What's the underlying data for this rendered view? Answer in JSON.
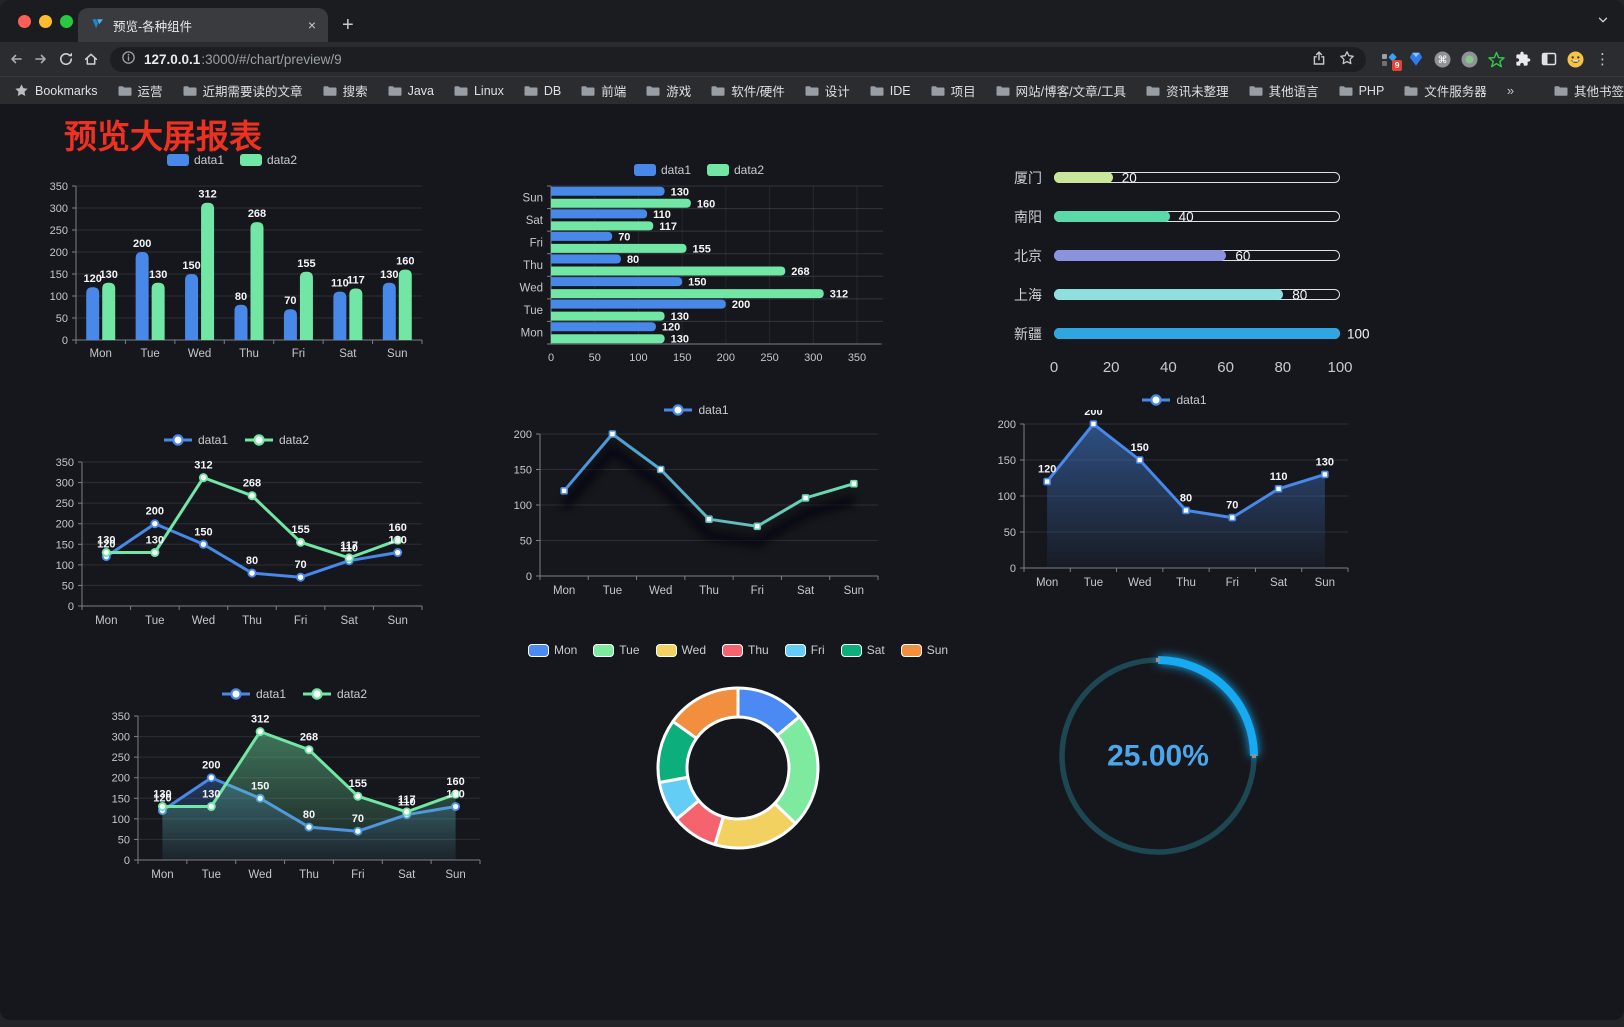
{
  "browser": {
    "window_controls": [
      "#ff5f57",
      "#febc2e",
      "#28c840"
    ],
    "tab": {
      "title": "预览-各种组件"
    },
    "icons": {
      "close": "×",
      "new_tab": "+",
      "menu": "⋮"
    },
    "url": {
      "host": "127.0.0.1",
      "rest": ":3000/#/chart/preview/9"
    },
    "extensions_badge": "9",
    "bookmarks": {
      "root": "Bookmarks",
      "folders": [
        "运营",
        "近期需要读的文章",
        "搜索",
        "Java",
        "Linux",
        "DB",
        "前端",
        "游戏",
        "软件/硬件",
        "设计",
        "IDE",
        "项目",
        "网站/博客/文章/工具",
        "资讯未整理",
        "其他语言",
        "PHP",
        "文件服务器"
      ],
      "overflow": "»",
      "other": "其他书签"
    }
  },
  "page": {
    "title": "预览大屏报表",
    "title_color": "#ee3120"
  },
  "chart_data": [
    {
      "id": "grouped-bar",
      "type": "bar",
      "orientation": "vertical",
      "title": "",
      "legend_position": "top",
      "grid": true,
      "value_labels": true,
      "categories": [
        "Mon",
        "Tue",
        "Wed",
        "Thu",
        "Fri",
        "Sat",
        "Sun"
      ],
      "series": [
        {
          "name": "data1",
          "color": "#4788e8",
          "values": [
            120,
            200,
            150,
            80,
            70,
            110,
            130
          ]
        },
        {
          "name": "data2",
          "color": "#71e6a5",
          "values": [
            130,
            130,
            312,
            268,
            155,
            117,
            160
          ]
        }
      ],
      "ylim": [
        0,
        350
      ],
      "ytick": 50
    },
    {
      "id": "horizontal-bar",
      "type": "bar",
      "orientation": "horizontal",
      "legend_position": "top",
      "grid": true,
      "value_labels": true,
      "categories": [
        "Sun",
        "Sat",
        "Fri",
        "Thu",
        "Wed",
        "Tue",
        "Mon"
      ],
      "series": [
        {
          "name": "data1",
          "color": "#4788e8",
          "values": [
            130,
            110,
            70,
            80,
            150,
            200,
            120
          ]
        },
        {
          "name": "data2",
          "color": "#71e6a5",
          "values": [
            160,
            117,
            155,
            268,
            312,
            130,
            130
          ]
        }
      ],
      "xlim": [
        0,
        350
      ],
      "xtick": 50
    },
    {
      "id": "city-progress",
      "type": "progress-bars",
      "max": 100,
      "items": [
        {
          "label": "厦门",
          "value": 20,
          "color": "#c9e79b"
        },
        {
          "label": "南阳",
          "value": 40,
          "color": "#5bd9a8"
        },
        {
          "label": "北京",
          "value": 60,
          "color": "#8b93de"
        },
        {
          "label": "上海",
          "value": 80,
          "color": "#8fdfdf"
        },
        {
          "label": "新疆",
          "value": 100,
          "color": "#30a6e0"
        }
      ],
      "axis_ticks": [
        0,
        20,
        40,
        60,
        80,
        100
      ]
    },
    {
      "id": "line-two",
      "type": "line",
      "legend_position": "top",
      "grid": true,
      "value_labels": true,
      "categories": [
        "Mon",
        "Tue",
        "Wed",
        "Thu",
        "Fri",
        "Sat",
        "Sun"
      ],
      "series": [
        {
          "name": "data1",
          "color": "#4788e8",
          "values": [
            120,
            200,
            150,
            80,
            70,
            110,
            130
          ]
        },
        {
          "name": "data2",
          "color": "#71e6a5",
          "values": [
            130,
            130,
            312,
            268,
            155,
            117,
            160
          ]
        }
      ],
      "ylim": [
        0,
        350
      ],
      "ytick": 50
    },
    {
      "id": "line-gradient",
      "type": "line",
      "legend_position": "top",
      "grid": true,
      "value_labels": false,
      "categories": [
        "Mon",
        "Tue",
        "Wed",
        "Thu",
        "Fri",
        "Sat",
        "Sun"
      ],
      "series": [
        {
          "name": "data1",
          "gradient": [
            "#4788e8",
            "#71e6a5"
          ],
          "values": [
            120,
            200,
            150,
            80,
            70,
            110,
            130
          ]
        }
      ],
      "ylim": [
        0,
        200
      ],
      "ytick": 50
    },
    {
      "id": "line-area-blue",
      "type": "area",
      "legend_position": "top",
      "grid": true,
      "value_labels": true,
      "categories": [
        "Mon",
        "Tue",
        "Wed",
        "Thu",
        "Fri",
        "Sat",
        "Sun"
      ],
      "series": [
        {
          "name": "data1",
          "color": "#4788e8",
          "area": true,
          "values": [
            120,
            200,
            150,
            80,
            70,
            110,
            130
          ]
        }
      ],
      "ylim": [
        0,
        200
      ],
      "ytick": 50
    },
    {
      "id": "line-area-two",
      "type": "area",
      "legend_position": "top",
      "grid": true,
      "value_labels": true,
      "categories": [
        "Mon",
        "Tue",
        "Wed",
        "Thu",
        "Fri",
        "Sat",
        "Sun"
      ],
      "series": [
        {
          "name": "data1",
          "color": "#4788e8",
          "area": true,
          "values": [
            120,
            200,
            150,
            80,
            70,
            110,
            130
          ]
        },
        {
          "name": "data2",
          "color": "#71e6a5",
          "area": true,
          "values": [
            130,
            130,
            312,
            268,
            155,
            117,
            160
          ]
        }
      ],
      "ylim": [
        0,
        350
      ],
      "ytick": 50
    },
    {
      "id": "donut",
      "type": "pie",
      "legend_position": "top",
      "items": [
        {
          "name": "Mon",
          "value": 120,
          "color": "#4a8af2"
        },
        {
          "name": "Tue",
          "value": 200,
          "color": "#7dea9f"
        },
        {
          "name": "Wed",
          "value": 150,
          "color": "#f2d161"
        },
        {
          "name": "Thu",
          "value": 80,
          "color": "#f5646e"
        },
        {
          "name": "Fri",
          "value": 70,
          "color": "#63cdf5"
        },
        {
          "name": "Sat",
          "value": 110,
          "color": "#0cae7c"
        },
        {
          "name": "Sun",
          "value": 130,
          "color": "#f28f3f"
        }
      ]
    },
    {
      "id": "gauge",
      "type": "gauge",
      "value": 25,
      "max": 100,
      "label": "25.00%",
      "color": "#17aaf3",
      "track_color": "#1d4752",
      "text_color": "#4ba7ea"
    }
  ]
}
